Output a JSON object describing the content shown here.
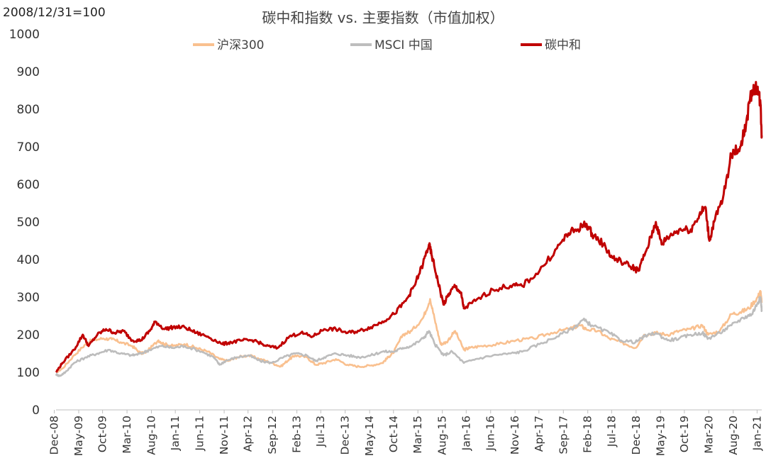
{
  "chart_data": {
    "type": "line",
    "title": "碳中和指数 vs. 主要指数（市值加权）",
    "note": "2008/12/31=100",
    "ylim": [
      0,
      1000
    ],
    "yticks": [
      0,
      100,
      200,
      300,
      400,
      500,
      600,
      700,
      800,
      900,
      1000
    ],
    "x_start": 2008.99,
    "x_end": 2021.12,
    "xticks": [
      {
        "label": "Dec-08",
        "t": 2008.96
      },
      {
        "label": "May-09",
        "t": 2009.38
      },
      {
        "label": "Oct-09",
        "t": 2009.79
      },
      {
        "label": "Mar-10",
        "t": 2010.21
      },
      {
        "label": "Aug-10",
        "t": 2010.63
      },
      {
        "label": "Jan-11",
        "t": 2011.04
      },
      {
        "label": "Jun-11",
        "t": 2011.46
      },
      {
        "label": "Nov-11",
        "t": 2011.88
      },
      {
        "label": "Apr-12",
        "t": 2012.29
      },
      {
        "label": "Sep-12",
        "t": 2012.71
      },
      {
        "label": "Feb-13",
        "t": 2013.13
      },
      {
        "label": "Jul-13",
        "t": 2013.54
      },
      {
        "label": "Dec-13",
        "t": 2013.96
      },
      {
        "label": "May-14",
        "t": 2014.38
      },
      {
        "label": "Oct-14",
        "t": 2014.79
      },
      {
        "label": "Mar-15",
        "t": 2015.21
      },
      {
        "label": "Aug-15",
        "t": 2015.63
      },
      {
        "label": "Jan-16",
        "t": 2016.04
      },
      {
        "label": "Jun-16",
        "t": 2016.46
      },
      {
        "label": "Nov-16",
        "t": 2016.88
      },
      {
        "label": "Apr-17",
        "t": 2017.29
      },
      {
        "label": "Sep-17",
        "t": 2017.71
      },
      {
        "label": "Feb-18",
        "t": 2018.13
      },
      {
        "label": "Jul-18",
        "t": 2018.54
      },
      {
        "label": "Dec-18",
        "t": 2018.96
      },
      {
        "label": "May-19",
        "t": 2019.38
      },
      {
        "label": "Oct-19",
        "t": 2019.79
      },
      {
        "label": "Mar-20",
        "t": 2020.21
      },
      {
        "label": "Aug-20",
        "t": 2020.63
      },
      {
        "label": "Jan-21",
        "t": 2021.04
      }
    ],
    "legend_position": "top-center",
    "grid": false,
    "series": [
      {
        "name": "沪深300",
        "color": "#f9c08f",
        "points": [
          [
            2008.99,
            100
          ],
          [
            2009.1,
            110
          ],
          [
            2009.3,
            145
          ],
          [
            2009.5,
            175
          ],
          [
            2009.6,
            185
          ],
          [
            2009.8,
            190
          ],
          [
            2009.95,
            188
          ],
          [
            2010.1,
            180
          ],
          [
            2010.3,
            170
          ],
          [
            2010.45,
            150
          ],
          [
            2010.55,
            155
          ],
          [
            2010.75,
            185
          ],
          [
            2010.85,
            175
          ],
          [
            2011.0,
            170
          ],
          [
            2011.2,
            175
          ],
          [
            2011.4,
            165
          ],
          [
            2011.6,
            155
          ],
          [
            2011.8,
            135
          ],
          [
            2011.95,
            130
          ],
          [
            2012.1,
            140
          ],
          [
            2012.3,
            145
          ],
          [
            2012.5,
            135
          ],
          [
            2012.7,
            125
          ],
          [
            2012.85,
            115
          ],
          [
            2013.0,
            135
          ],
          [
            2013.1,
            145
          ],
          [
            2013.3,
            140
          ],
          [
            2013.45,
            120
          ],
          [
            2013.6,
            125
          ],
          [
            2013.8,
            135
          ],
          [
            2014.0,
            120
          ],
          [
            2014.2,
            115
          ],
          [
            2014.4,
            118
          ],
          [
            2014.6,
            125
          ],
          [
            2014.7,
            140
          ],
          [
            2014.8,
            155
          ],
          [
            2014.95,
            200
          ],
          [
            2015.1,
            210
          ],
          [
            2015.3,
            245
          ],
          [
            2015.42,
            295
          ],
          [
            2015.5,
            240
          ],
          [
            2015.6,
            175
          ],
          [
            2015.7,
            180
          ],
          [
            2015.85,
            210
          ],
          [
            2016.0,
            160
          ],
          [
            2016.1,
            165
          ],
          [
            2016.3,
            170
          ],
          [
            2016.6,
            175
          ],
          [
            2016.9,
            185
          ],
          [
            2017.2,
            190
          ],
          [
            2017.5,
            205
          ],
          [
            2017.8,
            215
          ],
          [
            2018.0,
            225
          ],
          [
            2018.1,
            215
          ],
          [
            2018.3,
            210
          ],
          [
            2018.5,
            190
          ],
          [
            2018.7,
            180
          ],
          [
            2018.95,
            165
          ],
          [
            2019.1,
            200
          ],
          [
            2019.3,
            205
          ],
          [
            2019.5,
            200
          ],
          [
            2019.7,
            210
          ],
          [
            2019.9,
            215
          ],
          [
            2020.1,
            225
          ],
          [
            2020.2,
            200
          ],
          [
            2020.4,
            210
          ],
          [
            2020.6,
            255
          ],
          [
            2020.75,
            260
          ],
          [
            2020.9,
            270
          ],
          [
            2021.05,
            300
          ],
          [
            2021.1,
            315
          ],
          [
            2021.12,
            285
          ]
        ]
      },
      {
        "name": "MSCI 中国",
        "color": "#bdbdbd",
        "points": [
          [
            2008.99,
            95
          ],
          [
            2009.05,
            90
          ],
          [
            2009.15,
            100
          ],
          [
            2009.3,
            125
          ],
          [
            2009.5,
            140
          ],
          [
            2009.7,
            150
          ],
          [
            2009.9,
            160
          ],
          [
            2010.1,
            150
          ],
          [
            2010.3,
            145
          ],
          [
            2010.45,
            150
          ],
          [
            2010.6,
            160
          ],
          [
            2010.8,
            170
          ],
          [
            2011.0,
            165
          ],
          [
            2011.2,
            170
          ],
          [
            2011.5,
            155
          ],
          [
            2011.7,
            140
          ],
          [
            2011.8,
            120
          ],
          [
            2011.9,
            130
          ],
          [
            2012.1,
            140
          ],
          [
            2012.3,
            145
          ],
          [
            2012.5,
            130
          ],
          [
            2012.7,
            125
          ],
          [
            2012.9,
            140
          ],
          [
            2013.1,
            150
          ],
          [
            2013.3,
            145
          ],
          [
            2013.45,
            130
          ],
          [
            2013.6,
            140
          ],
          [
            2013.8,
            150
          ],
          [
            2014.0,
            145
          ],
          [
            2014.2,
            140
          ],
          [
            2014.4,
            145
          ],
          [
            2014.6,
            155
          ],
          [
            2014.8,
            155
          ],
          [
            2014.95,
            165
          ],
          [
            2015.1,
            170
          ],
          [
            2015.3,
            190
          ],
          [
            2015.4,
            210
          ],
          [
            2015.5,
            175
          ],
          [
            2015.65,
            145
          ],
          [
            2015.8,
            155
          ],
          [
            2016.0,
            125
          ],
          [
            2016.2,
            135
          ],
          [
            2016.5,
            145
          ],
          [
            2016.8,
            150
          ],
          [
            2017.0,
            155
          ],
          [
            2017.3,
            175
          ],
          [
            2017.6,
            195
          ],
          [
            2017.9,
            220
          ],
          [
            2018.05,
            240
          ],
          [
            2018.2,
            225
          ],
          [
            2018.5,
            205
          ],
          [
            2018.7,
            185
          ],
          [
            2018.95,
            180
          ],
          [
            2019.1,
            195
          ],
          [
            2019.3,
            205
          ],
          [
            2019.5,
            185
          ],
          [
            2019.7,
            190
          ],
          [
            2019.9,
            200
          ],
          [
            2020.1,
            205
          ],
          [
            2020.2,
            190
          ],
          [
            2020.4,
            205
          ],
          [
            2020.6,
            225
          ],
          [
            2020.8,
            245
          ],
          [
            2020.95,
            255
          ],
          [
            2021.05,
            285
          ],
          [
            2021.1,
            300
          ],
          [
            2021.12,
            265
          ]
        ]
      },
      {
        "name": "碳中和",
        "color": "#c00000",
        "points": [
          [
            2008.99,
            100
          ],
          [
            2009.1,
            125
          ],
          [
            2009.3,
            160
          ],
          [
            2009.45,
            200
          ],
          [
            2009.55,
            170
          ],
          [
            2009.7,
            200
          ],
          [
            2009.85,
            215
          ],
          [
            2010.0,
            205
          ],
          [
            2010.15,
            210
          ],
          [
            2010.3,
            185
          ],
          [
            2010.45,
            185
          ],
          [
            2010.6,
            210
          ],
          [
            2010.7,
            235
          ],
          [
            2010.85,
            215
          ],
          [
            2011.0,
            220
          ],
          [
            2011.2,
            220
          ],
          [
            2011.4,
            205
          ],
          [
            2011.6,
            195
          ],
          [
            2011.85,
            175
          ],
          [
            2012.0,
            180
          ],
          [
            2012.2,
            185
          ],
          [
            2012.4,
            185
          ],
          [
            2012.6,
            170
          ],
          [
            2012.8,
            165
          ],
          [
            2013.0,
            195
          ],
          [
            2013.2,
            205
          ],
          [
            2013.4,
            195
          ],
          [
            2013.6,
            215
          ],
          [
            2013.8,
            215
          ],
          [
            2014.0,
            205
          ],
          [
            2014.2,
            210
          ],
          [
            2014.4,
            220
          ],
          [
            2014.6,
            235
          ],
          [
            2014.8,
            255
          ],
          [
            2015.0,
            290
          ],
          [
            2015.15,
            330
          ],
          [
            2015.3,
            390
          ],
          [
            2015.4,
            440
          ],
          [
            2015.45,
            410
          ],
          [
            2015.55,
            345
          ],
          [
            2015.65,
            280
          ],
          [
            2015.75,
            310
          ],
          [
            2015.85,
            330
          ],
          [
            2015.95,
            310
          ],
          [
            2016.0,
            270
          ],
          [
            2016.2,
            290
          ],
          [
            2016.5,
            320
          ],
          [
            2016.8,
            330
          ],
          [
            2017.0,
            330
          ],
          [
            2017.3,
            370
          ],
          [
            2017.6,
            430
          ],
          [
            2017.8,
            470
          ],
          [
            2017.95,
            480
          ],
          [
            2018.1,
            495
          ],
          [
            2018.2,
            470
          ],
          [
            2018.4,
            440
          ],
          [
            2018.55,
            405
          ],
          [
            2018.7,
            395
          ],
          [
            2018.9,
            380
          ],
          [
            2019.0,
            370
          ],
          [
            2019.15,
            430
          ],
          [
            2019.3,
            500
          ],
          [
            2019.4,
            440
          ],
          [
            2019.5,
            460
          ],
          [
            2019.7,
            480
          ],
          [
            2019.9,
            480
          ],
          [
            2020.05,
            520
          ],
          [
            2020.15,
            540
          ],
          [
            2020.22,
            450
          ],
          [
            2020.3,
            500
          ],
          [
            2020.45,
            560
          ],
          [
            2020.6,
            680
          ],
          [
            2020.75,
            700
          ],
          [
            2020.85,
            760
          ],
          [
            2020.95,
            850
          ],
          [
            2021.05,
            860
          ],
          [
            2021.1,
            810
          ],
          [
            2021.12,
            730
          ]
        ]
      }
    ]
  }
}
